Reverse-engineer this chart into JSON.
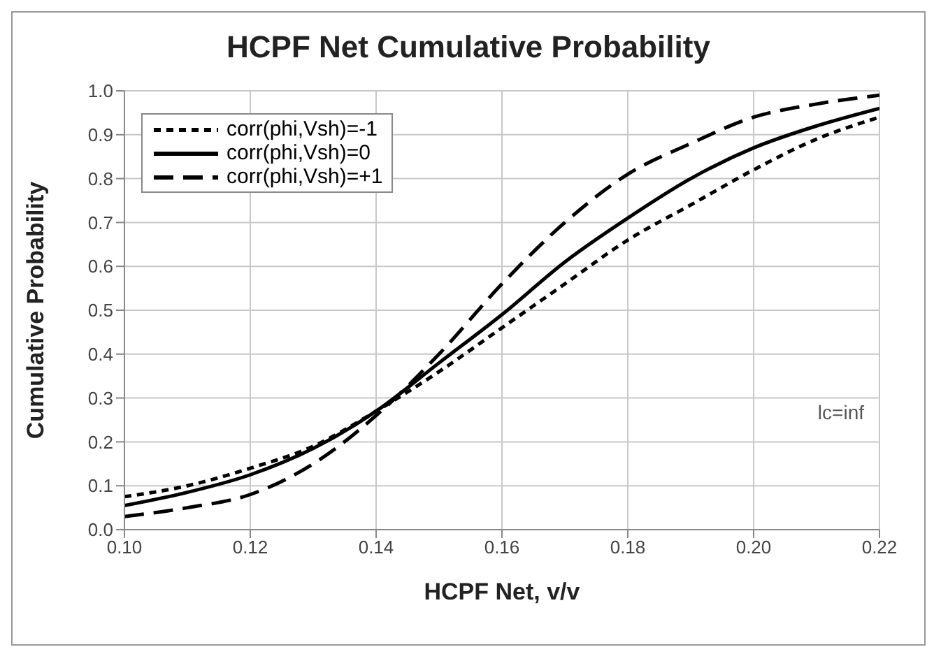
{
  "chart_data": {
    "type": "line",
    "title": "HCPF Net Cumulative Probability",
    "xlabel": "HCPF Net, v/v",
    "ylabel": "Cumulative Probability",
    "x": [
      0.1,
      0.11,
      0.12,
      0.13,
      0.14,
      0.15,
      0.16,
      0.17,
      0.18,
      0.19,
      0.2,
      0.21,
      0.22
    ],
    "series": [
      {
        "name": "corr(phi,Vsh)=-1",
        "color": "#000000",
        "line_style": "dotted",
        "values": [
          0.075,
          0.1,
          0.14,
          0.19,
          0.27,
          0.36,
          0.46,
          0.56,
          0.66,
          0.74,
          0.82,
          0.89,
          0.94
        ]
      },
      {
        "name": "corr(phi,Vsh)=0",
        "color": "#000000",
        "line_style": "solid",
        "values": [
          0.055,
          0.085,
          0.125,
          0.185,
          0.27,
          0.38,
          0.49,
          0.61,
          0.71,
          0.8,
          0.87,
          0.92,
          0.96
        ]
      },
      {
        "name": "corr(phi,Vsh)=+1",
        "color": "#000000",
        "line_style": "dashed",
        "values": [
          0.03,
          0.05,
          0.08,
          0.15,
          0.26,
          0.4,
          0.56,
          0.7,
          0.81,
          0.88,
          0.94,
          0.97,
          0.99
        ]
      }
    ],
    "xlim": [
      0.1,
      0.22
    ],
    "xticks": [
      {
        "value": 0.1,
        "label": "0.10"
      },
      {
        "value": 0.12,
        "label": "0.12"
      },
      {
        "value": 0.14,
        "label": "0.14"
      },
      {
        "value": 0.16,
        "label": "0.16"
      },
      {
        "value": 0.18,
        "label": "0.18"
      },
      {
        "value": 0.2,
        "label": "0.20"
      },
      {
        "value": 0.22,
        "label": "0.22"
      }
    ],
    "ylim": [
      0,
      1
    ],
    "yticks": [
      {
        "value": 0,
        "label": "0.0"
      },
      {
        "value": 0.1,
        "label": "0.1"
      },
      {
        "value": 0.2,
        "label": "0.2"
      },
      {
        "value": 0.3,
        "label": "0.3"
      },
      {
        "value": 0.4,
        "label": "0.4"
      },
      {
        "value": 0.5,
        "label": "0.5"
      },
      {
        "value": 0.6,
        "label": "0.6"
      },
      {
        "value": 0.7,
        "label": "0.7"
      },
      {
        "value": 0.8,
        "label": "0.8"
      },
      {
        "value": 0.9,
        "label": "0.9"
      },
      {
        "value": 1,
        "label": "1.0"
      }
    ],
    "grid": true,
    "legend": "top left",
    "marker": "none",
    "annotations": [
      "lc=inf"
    ]
  }
}
